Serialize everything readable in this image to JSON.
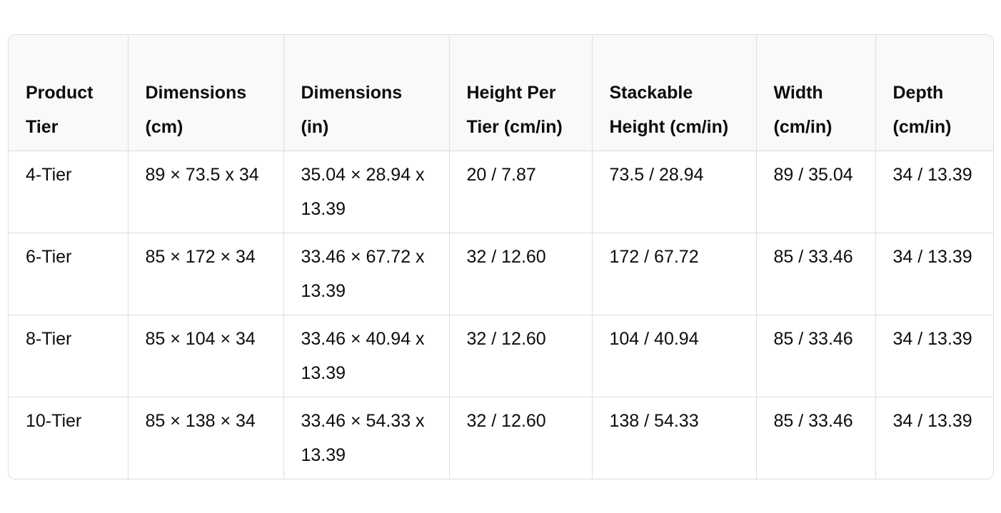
{
  "table": {
    "header": [
      "Product Tier",
      "Dimensions (cm)",
      "Dimensions (in)",
      "Height Per Tier (cm/in)",
      "Stackable Height (cm/in)",
      "Width (cm/in)",
      "Depth (cm/in)"
    ],
    "rows": [
      [
        "4-Tier",
        "89 × 73.5 x 34",
        "35.04 × 28.94 x 13.39",
        "20 / 7.87",
        "73.5 / 28.94",
        "89 / 35.04",
        "34 / 13.39"
      ],
      [
        "6-Tier",
        "85 × 172 × 34",
        "33.46 × 67.72 x 13.39",
        "32 / 12.60",
        "172 / 67.72",
        "85 / 33.46",
        "34 / 13.39"
      ],
      [
        "8-Tier",
        "85 × 104 × 34",
        "33.46 × 40.94 x 13.39",
        "32 / 12.60",
        "104 / 40.94",
        "85 / 33.46",
        "34 / 13.39"
      ],
      [
        "10-Tier",
        "85 × 138 × 34",
        "33.46 × 54.33 x 13.39",
        "32 / 12.60",
        "138 / 54.33",
        "85 / 33.46",
        "34 / 13.39"
      ]
    ]
  }
}
